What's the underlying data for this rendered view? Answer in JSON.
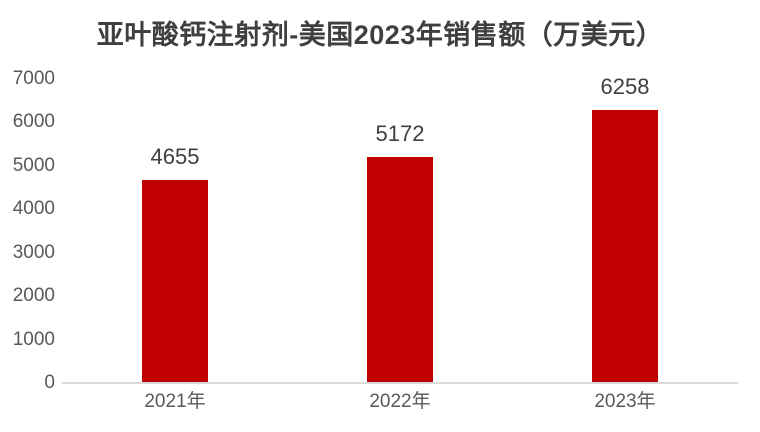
{
  "chart_data": {
    "type": "bar",
    "title": "亚叶酸钙注射剂-美国2023年销售额（万美元）",
    "categories": [
      "2021年",
      "2022年",
      "2023年"
    ],
    "values": [
      4655,
      5172,
      6258
    ],
    "value_labels": [
      "4655",
      "5172",
      "6258"
    ],
    "xlabel": "",
    "ylabel": "",
    "ylim": [
      0,
      7000
    ],
    "yticks": [
      0,
      1000,
      2000,
      3000,
      4000,
      5000,
      6000,
      7000
    ],
    "grid": false,
    "legend": "none",
    "colors": {
      "bar": "#C00000",
      "axis_line": "#D9D9D9",
      "tick_label": "#595959",
      "value_label": "#404040",
      "title": "#3F3F3F",
      "background": "#FFFFFF"
    }
  }
}
